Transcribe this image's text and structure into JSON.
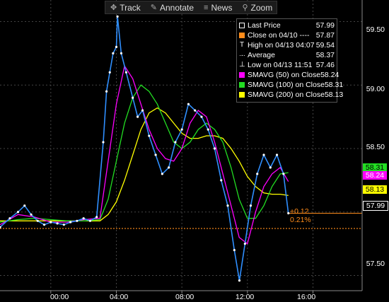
{
  "toolbar": {
    "items": [
      {
        "label": "Track",
        "icon": "crosshair-icon"
      },
      {
        "label": "Annotate",
        "icon": "pencil-icon"
      },
      {
        "label": "News",
        "icon": "news-icon"
      },
      {
        "label": "Zoom",
        "icon": "magnifier-icon"
      }
    ]
  },
  "legend": {
    "rows": [
      {
        "label": "Last Price",
        "value": "57.99",
        "color": "#ffffff",
        "icon": "square-outline-icon"
      },
      {
        "label": "Close on 04/10 ----",
        "value": "57.87",
        "color": "#ff8c1a",
        "icon": "square-icon"
      },
      {
        "label": "High on 04/13 04:07",
        "value": "59.54",
        "color": "#ffffff",
        "icon": "high-marker-icon"
      },
      {
        "label": "Average",
        "value": "58.37",
        "color": "#ffffff",
        "icon": "average-icon"
      },
      {
        "label": "Low on 04/13 11:51",
        "value": "57.46",
        "color": "#ffffff",
        "icon": "low-marker-icon"
      },
      {
        "label": "SMAVG (50) on Close",
        "value": "58.24",
        "color": "#ff00ff",
        "icon": "square-icon"
      },
      {
        "label": "SMAVG (100) on Close",
        "value": "58.31",
        "color": "#22dd22",
        "icon": "square-icon"
      },
      {
        "label": "SMAVG (200) on Close",
        "value": "58.13",
        "color": "#ffff00",
        "icon": "square-icon"
      }
    ]
  },
  "axis": {
    "y_ticks": [
      "59.50",
      "59.00",
      "58.50",
      "57.50"
    ],
    "x_ticks": [
      "00:00",
      "04:00",
      "08:00",
      "12:00",
      "16:00"
    ]
  },
  "price_tags": [
    {
      "value": "58.31",
      "color": "#22dd22",
      "text_color": "#000000"
    },
    {
      "value": "58.24",
      "color": "#ff00ff",
      "text_color": "#ffffff"
    },
    {
      "value": "58.13",
      "color": "#ffff00",
      "text_color": "#000000"
    },
    {
      "value": "57.99",
      "color": "#000000",
      "text_color": "#ffffff"
    }
  ],
  "change": {
    "abs": "+0.12",
    "pct": "0.21%"
  },
  "chart_data": {
    "type": "line",
    "title": "",
    "xlabel": "",
    "ylabel": "",
    "ylim": [
      57.38,
      59.67
    ],
    "xlim": [
      -3.1,
      19.0
    ],
    "grid": true,
    "reference_line": {
      "name": "Close on 04/10",
      "value": 57.87,
      "color": "#ff8c1a"
    },
    "last_price_line": 57.99,
    "series": [
      {
        "name": "Last Price",
        "color": "#2f8fff",
        "x": [
          -3.1,
          -2.5,
          -2.0,
          -1.6,
          -1.2,
          -0.8,
          -0.4,
          0.0,
          0.4,
          0.8,
          1.2,
          1.6,
          2.0,
          2.4,
          2.8,
          3.2,
          3.4,
          3.6,
          3.8,
          4.0,
          4.07,
          4.3,
          4.6,
          5.0,
          5.3,
          5.6,
          6.0,
          6.4,
          6.8,
          7.2,
          7.6,
          8.0,
          8.4,
          8.8,
          9.2,
          9.6,
          10.0,
          10.4,
          10.8,
          11.2,
          11.51,
          11.85,
          12.2,
          12.6,
          13.0,
          13.4,
          13.8,
          14.2,
          14.5
        ],
        "y": [
          57.88,
          57.95,
          58.0,
          58.05,
          57.98,
          57.93,
          57.9,
          57.92,
          57.91,
          57.9,
          57.92,
          57.93,
          57.95,
          57.93,
          57.96,
          58.55,
          58.95,
          59.1,
          59.25,
          59.3,
          59.54,
          59.25,
          59.1,
          58.9,
          58.75,
          58.8,
          58.6,
          58.45,
          58.3,
          58.35,
          58.55,
          58.65,
          58.85,
          58.8,
          58.75,
          58.65,
          58.5,
          58.25,
          58.05,
          57.7,
          57.46,
          57.75,
          58.05,
          58.3,
          58.45,
          58.35,
          58.45,
          58.3,
          57.99
        ]
      },
      {
        "name": "SMAVG (50) on Close",
        "color": "#ff00ff",
        "x": [
          -3.1,
          -2.0,
          -1.0,
          0.0,
          1.0,
          2.0,
          3.0,
          3.5,
          4.0,
          4.5,
          5.0,
          5.5,
          6.0,
          6.5,
          7.0,
          7.5,
          8.0,
          8.5,
          9.0,
          9.5,
          10.0,
          10.5,
          11.0,
          11.5,
          12.0,
          12.5,
          13.0,
          13.5,
          14.0,
          14.5
        ],
        "y": [
          57.9,
          57.98,
          57.96,
          57.92,
          57.92,
          57.94,
          57.95,
          58.4,
          58.85,
          59.15,
          59.05,
          58.85,
          58.65,
          58.5,
          58.42,
          58.4,
          58.5,
          58.7,
          58.8,
          58.75,
          58.55,
          58.3,
          58.05,
          57.8,
          57.75,
          58.0,
          58.2,
          58.3,
          58.35,
          58.24
        ]
      },
      {
        "name": "SMAVG (100) on Close",
        "color": "#22dd22",
        "x": [
          -3.1,
          -2.0,
          -1.0,
          0.0,
          1.0,
          2.0,
          3.0,
          3.5,
          4.0,
          4.5,
          5.0,
          5.5,
          6.0,
          6.5,
          7.0,
          7.5,
          8.0,
          8.5,
          9.0,
          9.5,
          10.0,
          10.5,
          11.0,
          11.5,
          12.0,
          12.5,
          13.0,
          13.5,
          14.0,
          14.5
        ],
        "y": [
          57.92,
          57.94,
          57.95,
          57.94,
          57.93,
          57.93,
          57.94,
          58.1,
          58.4,
          58.7,
          58.9,
          59.0,
          58.95,
          58.85,
          58.7,
          58.55,
          58.5,
          58.55,
          58.65,
          58.7,
          58.65,
          58.55,
          58.35,
          58.1,
          57.95,
          57.95,
          58.05,
          58.2,
          58.3,
          58.31
        ]
      },
      {
        "name": "SMAVG (200) on Close",
        "color": "#ffff00",
        "x": [
          -3.1,
          -2.0,
          -1.0,
          0.0,
          1.0,
          2.0,
          3.0,
          3.5,
          4.0,
          4.5,
          5.0,
          5.5,
          6.0,
          6.5,
          7.0,
          7.5,
          8.0,
          8.5,
          9.0,
          9.5,
          10.0,
          10.5,
          11.0,
          11.5,
          12.0,
          12.5,
          13.0,
          13.5,
          14.0,
          14.5
        ],
        "y": [
          57.93,
          57.93,
          57.93,
          57.93,
          57.93,
          57.93,
          57.93,
          57.98,
          58.08,
          58.25,
          58.45,
          58.65,
          58.78,
          58.82,
          58.78,
          58.7,
          58.62,
          58.58,
          58.58,
          58.6,
          58.6,
          58.58,
          58.5,
          58.4,
          58.28,
          58.2,
          58.15,
          58.14,
          58.14,
          58.13
        ]
      }
    ]
  }
}
